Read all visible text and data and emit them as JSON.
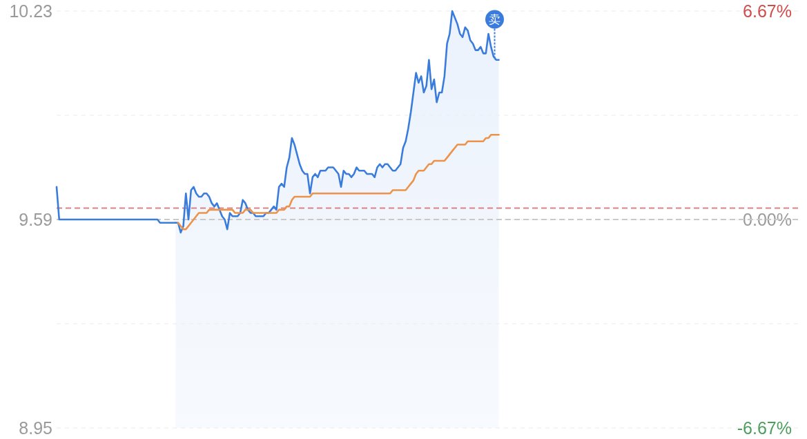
{
  "chart_data": {
    "type": "line",
    "categories": [
      null,
      null,
      null,
      null,
      null,
      null,
      null,
      null,
      null,
      null,
      null,
      null,
      null,
      null,
      null,
      null,
      null,
      null,
      null,
      null,
      null,
      null,
      null,
      null,
      null,
      null,
      null,
      null,
      null,
      null,
      null,
      null,
      null,
      null,
      null,
      null,
      null,
      null,
      null,
      null,
      null,
      null,
      null,
      null,
      null,
      null,
      null,
      null,
      null,
      null,
      null,
      null,
      null,
      null,
      null,
      null,
      null,
      null,
      null,
      null,
      null,
      null,
      null,
      null,
      null,
      null,
      null,
      null,
      null,
      null,
      null,
      null,
      null,
      null,
      null,
      null,
      null,
      null,
      null,
      null,
      null,
      null,
      null,
      null,
      null,
      null,
      null,
      null,
      null,
      null,
      null,
      null,
      null,
      null,
      null,
      null,
      null,
      null,
      null,
      null,
      null,
      null,
      null,
      null,
      null,
      null,
      null,
      null,
      null,
      null,
      null,
      null,
      null,
      null,
      null,
      null,
      null,
      null,
      null,
      null,
      null,
      null,
      null,
      null,
      null,
      null,
      null,
      null,
      null,
      null,
      null,
      null,
      null,
      null,
      null,
      null,
      null,
      null,
      null,
      null,
      null,
      null,
      null,
      null,
      null,
      null,
      null,
      null,
      null,
      null,
      null,
      null,
      null,
      null,
      null,
      null,
      null,
      null,
      null,
      null,
      null,
      null,
      null,
      null,
      null,
      null,
      null,
      null,
      null,
      null,
      null,
      null,
      null,
      null,
      null,
      null,
      null,
      null,
      null,
      null,
      null,
      null,
      null,
      null,
      null,
      null,
      null,
      null,
      null,
      null,
      null,
      null,
      null,
      null,
      null,
      null,
      null,
      null,
      null,
      null,
      null,
      null,
      null,
      null,
      null,
      null,
      null,
      null,
      null,
      null,
      null,
      null,
      null,
      null,
      null,
      null,
      null,
      null,
      null,
      null,
      null,
      null,
      null,
      null,
      null,
      null,
      null,
      null,
      null,
      null,
      null,
      null,
      null,
      null,
      null,
      null,
      null,
      null,
      null,
      null,
      null,
      null,
      null,
      null,
      null,
      null,
      null,
      null,
      null,
      null,
      null,
      null,
      null,
      null,
      null,
      null,
      null,
      null,
      null,
      null,
      null,
      null,
      null,
      null,
      null,
      null,
      null,
      null,
      null,
      null,
      null,
      null,
      null,
      null,
      null,
      null,
      null,
      null,
      null,
      null,
      null,
      null,
      null,
      null,
      null,
      null,
      null,
      null
    ],
    "series": [
      {
        "type": "line",
        "color": "#3a7cdc",
        "values": [
          9.69,
          9.59,
          9.59,
          9.59,
          9.59,
          9.59,
          9.59,
          9.59,
          9.59,
          9.59,
          9.59,
          9.59,
          9.59,
          9.59,
          9.59,
          9.59,
          9.59,
          9.59,
          9.59,
          9.59,
          9.59,
          9.59,
          9.59,
          9.59,
          9.59,
          9.59,
          9.59,
          9.59,
          9.59,
          9.59,
          9.59,
          9.59,
          9.59,
          9.59,
          9.59,
          9.59,
          9.59,
          9.59,
          9.59,
          9.59,
          9.58,
          9.58,
          9.58,
          9.58,
          9.58,
          9.58,
          9.58,
          null,
          null,
          null,
          null,
          null,
          null,
          null,
          null,
          null,
          null,
          null,
          null,
          null,
          null,
          null,
          null,
          null,
          null,
          null,
          null,
          null,
          null,
          null,
          null,
          null,
          null,
          null,
          null,
          null,
          null,
          null,
          null,
          null,
          null,
          null,
          null,
          null,
          null,
          null,
          null,
          null,
          null,
          null,
          null,
          null,
          null,
          null,
          null,
          null,
          null,
          null,
          null,
          null,
          null,
          null,
          null,
          null,
          null,
          null,
          null,
          null,
          null,
          null,
          null,
          null,
          null,
          null,
          null,
          null,
          null,
          null,
          null,
          null,
          null,
          null,
          null,
          null,
          null,
          null,
          null,
          null,
          null,
          null,
          null,
          null,
          null,
          null,
          null,
          null,
          null,
          null,
          null,
          null,
          null,
          null,
          null,
          null,
          null,
          null,
          null,
          null,
          null,
          null,
          null,
          null,
          null,
          null,
          null,
          null,
          null,
          null,
          null,
          null,
          null,
          null,
          null,
          null,
          null,
          null,
          null,
          null,
          null,
          null,
          null,
          null,
          null,
          null,
          null,
          null,
          null,
          null,
          null,
          null,
          null,
          null,
          null,
          null,
          null,
          null,
          null,
          null,
          null,
          null,
          null,
          null,
          null,
          null,
          null,
          null,
          null,
          null,
          null,
          null,
          null,
          null,
          null,
          null,
          null,
          null,
          null,
          null,
          null,
          null,
          null,
          null,
          null,
          null,
          null,
          null,
          null,
          null,
          null,
          null,
          null,
          null,
          null,
          null,
          null,
          null,
          null,
          null,
          null,
          null,
          null,
          null,
          null,
          null,
          null,
          null,
          null,
          null,
          null,
          null,
          null,
          null,
          null,
          null,
          null,
          null,
          null,
          null,
          null,
          null,
          null,
          null,
          null,
          null,
          null,
          null,
          null,
          null,
          null,
          null,
          null,
          null,
          null,
          null,
          null,
          null,
          null,
          null,
          null,
          null,
          null,
          null,
          null,
          null,
          null,
          null,
          null,
          null,
          null,
          null,
          null,
          null,
          null,
          null,
          null,
          null,
          null,
          null
        ]
      },
      {
        "type": "area",
        "color": "#3a7cdc",
        "values": [
          null,
          null,
          null,
          null,
          null,
          null,
          null,
          null,
          null,
          null,
          null,
          null,
          null,
          null,
          null,
          null,
          null,
          null,
          null,
          null,
          null,
          null,
          null,
          null,
          null,
          null,
          null,
          null,
          null,
          null,
          null,
          null,
          null,
          null,
          null,
          null,
          null,
          null,
          null,
          null,
          null,
          null,
          null,
          null,
          null,
          null,
          9.58,
          9.58,
          9.55,
          9.57,
          9.67,
          9.59,
          9.68,
          9.69,
          9.67,
          9.66,
          9.66,
          9.67,
          9.67,
          9.66,
          9.64,
          9.63,
          9.64,
          9.62,
          9.6,
          9.59,
          9.56,
          9.61,
          9.6,
          9.6,
          9.6,
          9.61,
          9.65,
          9.64,
          9.62,
          9.61,
          9.61,
          9.6,
          9.6,
          9.6,
          9.6,
          9.61,
          9.61,
          9.62,
          9.63,
          9.62,
          9.69,
          9.7,
          9.69,
          9.75,
          9.78,
          9.84,
          9.82,
          9.79,
          9.76,
          9.74,
          9.73,
          9.73,
          9.67,
          9.72,
          9.73,
          9.72,
          9.74,
          9.74,
          9.74,
          9.75,
          9.75,
          9.75,
          9.74,
          9.73,
          9.69,
          9.74,
          9.73,
          9.73,
          9.72,
          9.73,
          9.75,
          9.74,
          9.74,
          9.74,
          9.73,
          9.73,
          9.73,
          9.72,
          9.75,
          9.76,
          9.75,
          9.76,
          9.76,
          9.75,
          9.74,
          9.74,
          9.75,
          9.76,
          9.81,
          9.83,
          9.87,
          9.92,
          9.98,
          10.04,
          10.01,
          10.03,
          9.98,
          10.0,
          10.08,
          9.99,
          10.02,
          9.95,
          9.98,
          9.98,
          10.03,
          10.13,
          10.16,
          10.23,
          10.21,
          10.19,
          10.16,
          10.15,
          10.18,
          10.17,
          10.14,
          10.13,
          10.11,
          10.11,
          10.12,
          10.1,
          10.1,
          10.16,
          10.12,
          10.09,
          10.08,
          10.08,
          null,
          null,
          null,
          null,
          null,
          null,
          null,
          null,
          null,
          null,
          null,
          null,
          null,
          null,
          null,
          null,
          null,
          null,
          null,
          null,
          null,
          null,
          null,
          null,
          null,
          null,
          null,
          null,
          null,
          null,
          null,
          null,
          null,
          null,
          null,
          null,
          null,
          null,
          null,
          null,
          null,
          null,
          null,
          null,
          null,
          null,
          null,
          null,
          null,
          null,
          null,
          null,
          null,
          null,
          null,
          null,
          null,
          null,
          null,
          null,
          null,
          null,
          null,
          null,
          null,
          null,
          null,
          null,
          null,
          null,
          null,
          null,
          null,
          null,
          null,
          null,
          null,
          null,
          null,
          null,
          null,
          null,
          null,
          null,
          null,
          null,
          null,
          null,
          null,
          null,
          null,
          null,
          null,
          null,
          null,
          null,
          null,
          null,
          null,
          null,
          null,
          null,
          null,
          null,
          null,
          null,
          null,
          null,
          null,
          null,
          null,
          null,
          null,
          null,
          null,
          null
        ]
      },
      {
        "color": "#ec924a",
        "values": [
          null,
          null,
          null,
          null,
          null,
          null,
          null,
          null,
          null,
          null,
          null,
          null,
          null,
          null,
          null,
          null,
          null,
          null,
          null,
          null,
          null,
          null,
          null,
          null,
          null,
          null,
          null,
          null,
          null,
          null,
          null,
          null,
          null,
          null,
          null,
          null,
          null,
          null,
          null,
          null,
          null,
          null,
          null,
          null,
          null,
          null,
          null,
          9.58,
          9.57,
          9.56,
          9.56,
          9.57,
          9.58,
          9.59,
          9.6,
          9.61,
          9.61,
          9.61,
          9.61,
          9.62,
          9.62,
          9.62,
          9.62,
          9.62,
          9.62,
          9.62,
          9.62,
          9.62,
          9.62,
          9.61,
          9.61,
          9.61,
          9.61,
          9.62,
          9.62,
          9.62,
          9.61,
          9.61,
          9.61,
          9.61,
          9.61,
          9.61,
          9.61,
          9.61,
          9.61,
          9.61,
          9.62,
          9.62,
          9.62,
          9.63,
          9.63,
          9.65,
          9.66,
          9.66,
          9.66,
          9.66,
          9.66,
          9.66,
          9.66,
          9.67,
          9.67,
          9.67,
          9.67,
          9.67,
          9.67,
          9.67,
          9.67,
          9.67,
          9.67,
          9.67,
          9.67,
          9.67,
          9.67,
          9.67,
          9.67,
          9.67,
          9.67,
          9.67,
          9.67,
          9.67,
          9.67,
          9.67,
          9.67,
          9.67,
          9.67,
          9.67,
          9.67,
          9.67,
          9.67,
          9.67,
          9.68,
          9.68,
          9.68,
          9.68,
          9.68,
          9.68,
          9.69,
          9.7,
          9.71,
          9.73,
          9.74,
          9.74,
          9.74,
          9.75,
          9.76,
          9.76,
          9.77,
          9.77,
          9.77,
          9.77,
          9.77,
          9.78,
          9.79,
          9.8,
          9.81,
          9.82,
          9.82,
          9.82,
          9.82,
          9.83,
          9.83,
          9.83,
          9.83,
          9.83,
          9.83,
          9.83,
          9.84,
          9.84,
          9.85,
          9.85,
          9.85,
          9.85,
          null,
          null,
          null,
          null,
          null,
          null,
          null,
          null,
          null,
          null,
          null,
          null,
          null,
          null,
          null,
          null,
          null,
          null,
          null,
          null,
          null,
          null,
          null,
          null,
          null,
          null,
          null,
          null,
          null,
          null,
          null,
          null,
          null,
          null,
          null,
          null,
          null,
          null,
          null,
          null,
          null,
          null,
          null,
          null,
          null,
          null,
          null,
          null,
          null,
          null,
          null,
          null,
          null,
          null,
          null,
          null,
          null,
          null,
          null,
          null,
          null,
          null,
          null,
          null,
          null,
          null,
          null,
          null,
          null,
          null,
          null,
          null,
          null,
          null,
          null,
          null,
          null,
          null,
          null,
          null,
          null,
          null,
          null,
          null,
          null,
          null,
          null,
          null,
          null,
          null,
          null,
          null,
          null,
          null,
          null,
          null,
          null,
          null,
          null,
          null,
          null,
          null,
          null,
          null,
          null,
          null,
          null,
          null,
          null,
          null,
          null,
          null,
          null,
          null,
          null,
          null
        ]
      }
    ],
    "ylim": [
      8.95,
      10.23
    ],
    "yticks": [
      10.23,
      {
        "value": 9.91,
        "label": null
      },
      9.59,
      {
        "value": 9.27,
        "label": null
      },
      8.95
    ],
    "y2lim": [
      -6.67,
      6.67
    ],
    "y2ticks": [
      {
        "value": 6.67,
        "label": "6.67%"
      },
      {
        "value": 0,
        "label": "0.00%"
      },
      {
        "value": -6.67,
        "label": "-6.67%"
      }
    ],
    "grid": "y",
    "ref_lines": [
      {
        "axis": "y2",
        "value": 0,
        "color": "#c9c9c9",
        "line_style": "dashed"
      },
      {
        "axis": "y",
        "value": 9.625,
        "color": "#dc8283",
        "line_style": "dashed"
      }
    ],
    "annotations": [
      {
        "text": "卖",
        "y": 10.08
      }
    ]
  }
}
